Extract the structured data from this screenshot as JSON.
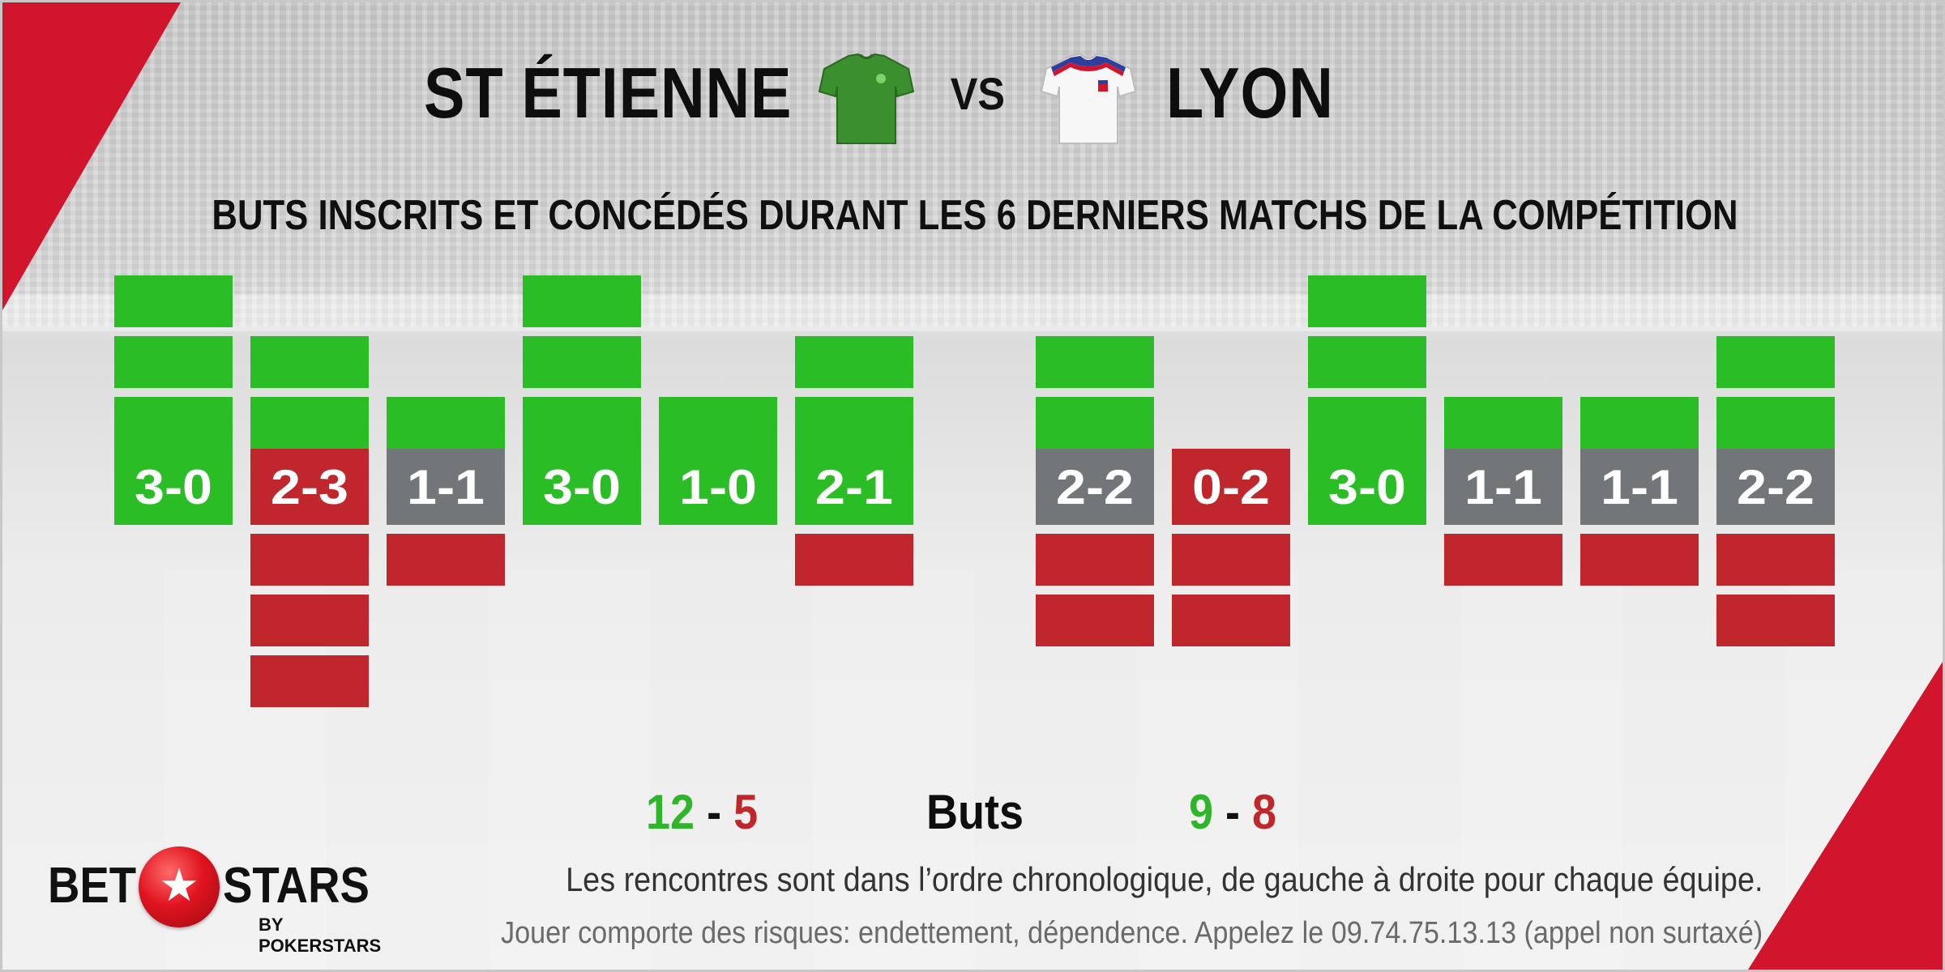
{
  "header": {
    "home_team": "ST ÉTIENNE",
    "vs": "VS",
    "away_team": "LYON",
    "home_jersey_icon": "green-jersey-icon",
    "away_jersey_icon": "white-jersey-icon"
  },
  "chart_data": {
    "type": "table",
    "title": "BUTS INSCRITS ET CONCÉDÉS DURANT LES 6 DERNIERS MATCHS DE LA COMPÉTITION",
    "legend": "Les rencontres sont dans l’ordre chronologique, de gauche à droite pour chaque équipe.",
    "colors": {
      "win": "#2bbd26",
      "loss": "#c0272d",
      "draw": "#737679",
      "scored": "#2bbd26",
      "conceded": "#c0272d"
    },
    "teams": [
      {
        "name": "ST ÉTIENNE",
        "matches": [
          {
            "scored": 3,
            "conceded": 0,
            "label": "3-0",
            "result": "win"
          },
          {
            "scored": 2,
            "conceded": 3,
            "label": "2-3",
            "result": "loss"
          },
          {
            "scored": 1,
            "conceded": 1,
            "label": "1-1",
            "result": "draw"
          },
          {
            "scored": 3,
            "conceded": 0,
            "label": "3-0",
            "result": "win"
          },
          {
            "scored": 1,
            "conceded": 0,
            "label": "1-0",
            "result": "win"
          },
          {
            "scored": 2,
            "conceded": 1,
            "label": "2-1",
            "result": "win"
          }
        ]
      },
      {
        "name": "LYON",
        "matches": [
          {
            "scored": 2,
            "conceded": 2,
            "label": "2-2",
            "result": "draw"
          },
          {
            "scored": 0,
            "conceded": 2,
            "label": "0-2",
            "result": "loss"
          },
          {
            "scored": 3,
            "conceded": 0,
            "label": "3-0",
            "result": "win"
          },
          {
            "scored": 1,
            "conceded": 1,
            "label": "1-1",
            "result": "draw"
          },
          {
            "scored": 1,
            "conceded": 1,
            "label": "1-1",
            "result": "draw"
          },
          {
            "scored": 2,
            "conceded": 2,
            "label": "2-2",
            "result": "draw"
          }
        ]
      }
    ]
  },
  "totals": {
    "home_scored": "12",
    "home_conceded": "5",
    "separator": "-",
    "label": "Buts",
    "away_scored": "9",
    "away_conceded": "8"
  },
  "footer": {
    "disclaimer": "Jouer comporte des risques: endettement, dépendence. Appelez le 09.74.75.13.13 (appel non surtaxé)"
  },
  "logo": {
    "word_left": "BET",
    "word_right": "STARS",
    "sub": "BY POKERSTARS",
    "star_glyph": "★",
    "icon": "star-ball-icon"
  }
}
